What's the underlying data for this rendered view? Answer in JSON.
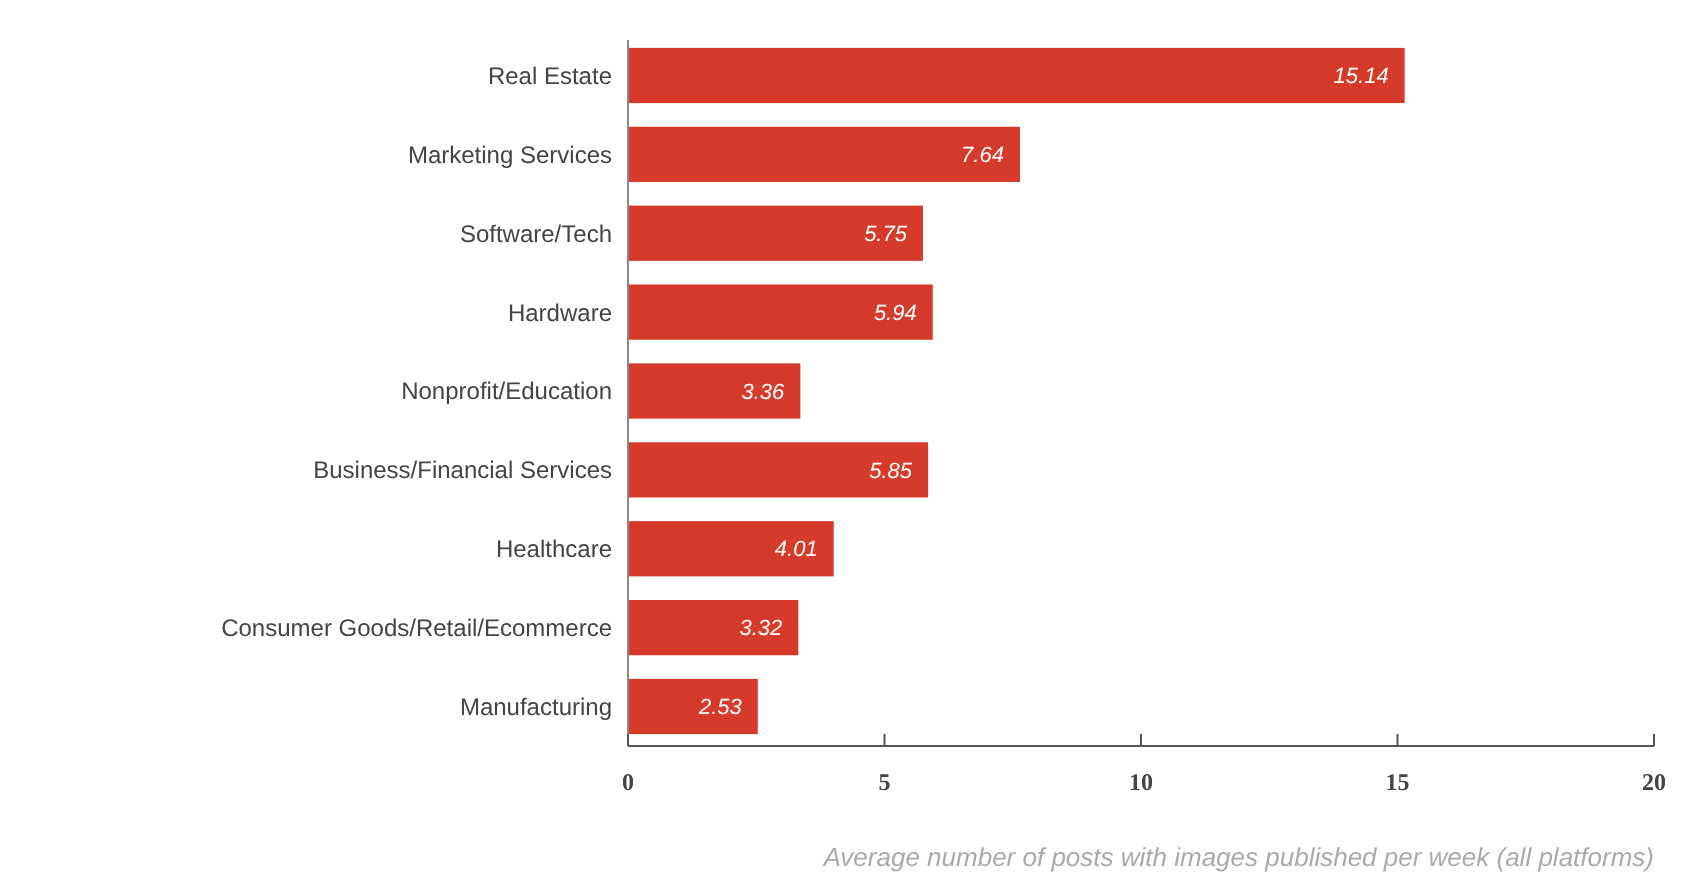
{
  "chart_data": {
    "type": "bar",
    "orientation": "horizontal",
    "xlabel": "Average number of posts with images published per week (all platforms)",
    "categories": [
      "Real Estate",
      "Marketing Services",
      "Software/Tech",
      "Hardware",
      "Nonprofit/Education",
      "Business/Financial Services",
      "Healthcare",
      "Consumer Goods/Retail/Ecommerce",
      "Manufacturing"
    ],
    "values": [
      15.14,
      7.64,
      5.75,
      5.94,
      3.36,
      5.85,
      4.01,
      3.32,
      2.53
    ],
    "color": "#d63a2b",
    "data_labels": true,
    "xlim": [
      0,
      20
    ],
    "xticks": [
      0,
      5,
      10,
      15,
      20
    ],
    "grid": false
  }
}
